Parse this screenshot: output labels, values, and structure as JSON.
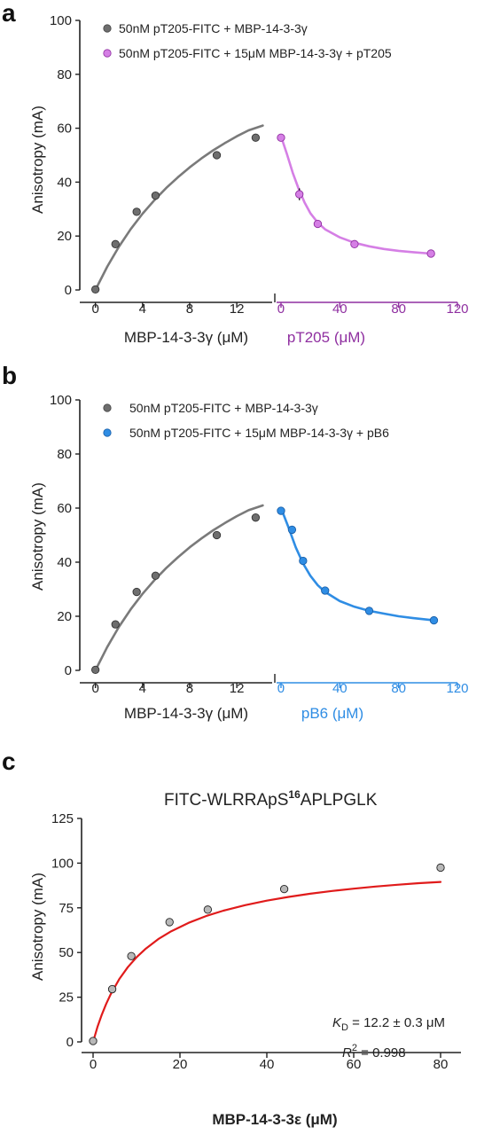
{
  "colors": {
    "gray": "#7a7a7a",
    "gray_marker": "#6e6e6e",
    "purple": "#d57fe5",
    "purple_text": "#8f2fa0",
    "blue": "#2f8de4",
    "blue_text": "#2f8de4",
    "red": "#e01b1b",
    "black": "#222222"
  },
  "chart_data": [
    {
      "panel": "a",
      "type": "scatter",
      "ylabel": "Anisotropy (mA)",
      "ylim": [
        0,
        100
      ],
      "yticks": [
        0,
        20,
        40,
        60,
        80,
        100
      ],
      "left": {
        "xlabel": "MBP-14-3-3γ (μM)",
        "xlim": [
          -0.5,
          15
        ],
        "xticks": [
          0,
          4,
          8,
          12
        ],
        "series": [
          {
            "name": "50nM pT205-FITC + MBP-14-3-3γ",
            "x": [
              0,
              1.7,
              3.5,
              5.1,
              10.3,
              13.6
            ],
            "y": [
              0.2,
              17,
              29,
              35,
              50,
              56.5
            ]
          }
        ],
        "fit": {
          "x": [
            0,
            1,
            2,
            3,
            4,
            5,
            6,
            7,
            8,
            9,
            10,
            11,
            12,
            13,
            14.2
          ],
          "y": [
            0,
            8.6,
            16.1,
            22.6,
            28.3,
            33.3,
            37.8,
            41.8,
            45.5,
            48.8,
            51.8,
            54.5,
            57,
            59.2,
            61
          ]
        }
      },
      "right": {
        "xlabel": "pT205 (μM)",
        "xlim": [
          -3,
          120
        ],
        "xticks": [
          0,
          40,
          80,
          120
        ],
        "series": [
          {
            "name": "50nM pT205-FITC + 15μM MBP-14-3-3γ + pT205",
            "x": [
              0,
              12.5,
              25,
              50,
              102
            ],
            "y": [
              56.5,
              35.5,
              24.5,
              17,
              13.5
            ],
            "yerr": [
              0,
              2.2,
              0,
              0,
              0
            ]
          }
        ],
        "fit": {
          "x": [
            0,
            4,
            8,
            12,
            16,
            20,
            25,
            30,
            40,
            50,
            60,
            70,
            80,
            90,
            102
          ],
          "y": [
            57,
            50.5,
            43.5,
            37.5,
            32.5,
            28.5,
            25,
            22.5,
            19.5,
            17.5,
            16.2,
            15.2,
            14.5,
            14,
            13.5
          ]
        }
      },
      "legend": [
        {
          "label": "50nM pT205-FITC + MBP-14-3-3γ",
          "color": "gray"
        },
        {
          "label": "50nM pT205-FITC + 15μM MBP-14-3-3γ + pT205",
          "color": "purple"
        }
      ]
    },
    {
      "panel": "b",
      "type": "scatter",
      "ylabel": "Anisotropy (mA)",
      "ylim": [
        0,
        100
      ],
      "yticks": [
        0,
        20,
        40,
        60,
        80,
        100
      ],
      "left": {
        "xlabel": "MBP-14-3-3γ (μM)",
        "xlim": [
          -0.5,
          15
        ],
        "xticks": [
          0,
          4,
          8,
          12
        ],
        "series": [
          {
            "name": "50nM pT205-FITC + MBP-14-3-3γ",
            "x": [
              0,
              1.7,
              3.5,
              5.1,
              10.3,
              13.6
            ],
            "y": [
              0.2,
              17,
              29,
              35,
              50,
              56.5
            ]
          }
        ],
        "fit": {
          "x": [
            0,
            1,
            2,
            3,
            4,
            5,
            6,
            7,
            8,
            9,
            10,
            11,
            12,
            13,
            14.2
          ],
          "y": [
            0,
            8.6,
            16.1,
            22.6,
            28.3,
            33.3,
            37.8,
            41.8,
            45.5,
            48.8,
            51.8,
            54.5,
            57,
            59.2,
            61
          ]
        }
      },
      "right": {
        "xlabel": "pB6 (μM)",
        "xlim": [
          -3,
          120
        ],
        "xticks": [
          0,
          40,
          80,
          120
        ],
        "series": [
          {
            "name": "50nM pT205-FITC + 15μM MBP-14-3-3γ + pB6",
            "x": [
              0,
              7.5,
              15,
              30,
              60,
              104
            ],
            "y": [
              59,
              52,
              40.5,
              29.5,
              22,
              18.5
            ]
          }
        ],
        "fit": {
          "x": [
            0,
            5,
            10,
            15,
            20,
            25,
            30,
            40,
            50,
            60,
            70,
            80,
            90,
            104
          ],
          "y": [
            60,
            53,
            45.5,
            39.5,
            35,
            31.5,
            29,
            25.6,
            23.5,
            22,
            21,
            20,
            19.3,
            18.5
          ]
        }
      },
      "legend": [
        {
          "label": "50nM pT205-FITC + MBP-14-3-3γ",
          "color": "gray"
        },
        {
          "label": "50nM pT205-FITC + 15μM MBP-14-3-3γ + pB6",
          "color": "blue"
        }
      ]
    },
    {
      "panel": "c",
      "type": "scatter",
      "title_main": "FITC-WLRRApS",
      "title_sup": "16",
      "title_tail": "APLPGLK",
      "xlabel": "MBP-14-3-3ε (μM)",
      "ylabel": "Anisotropy (mA)",
      "xlim": [
        -1,
        85
      ],
      "ylim": [
        -3,
        125
      ],
      "xticks": [
        0,
        20,
        40,
        60,
        80
      ],
      "yticks": [
        0,
        25,
        50,
        75,
        100,
        125
      ],
      "series": [
        {
          "name": "FITC-WLRRApS16APLPGLK",
          "x": [
            0,
            4.4,
            8.8,
            17.6,
            26.4,
            44,
            80
          ],
          "y": [
            0.5,
            29.5,
            48,
            67,
            74,
            85.5,
            97.5
          ],
          "yerr": [
            0,
            1.8,
            0,
            0,
            0,
            0,
            0
          ]
        }
      ],
      "fit": {
        "x": [
          0,
          1,
          2,
          3,
          4,
          6,
          8,
          10,
          12,
          15,
          18,
          22,
          26,
          30,
          35,
          40,
          45,
          50,
          55,
          60,
          65,
          70,
          75,
          80
        ],
        "y": [
          0,
          8.3,
          15.2,
          21.2,
          26.4,
          35,
          41.8,
          47.3,
          51.9,
          57.5,
          61.9,
          66.6,
          70.4,
          73.4,
          76.5,
          79,
          81.1,
          82.9,
          84.4,
          85.7,
          86.9,
          87.9,
          88.8,
          89.5
        ]
      },
      "annotation_kd_symbol": "K",
      "annotation_kd_sub": "D",
      "annotation_kd_value": " = 12.2 ± 0.3 μM",
      "annotation_r2_symbol": "R",
      "annotation_r2_sup": "2",
      "annotation_r2_value": " = 0.998"
    }
  ],
  "panel_labels": [
    "a",
    "b",
    "c"
  ]
}
